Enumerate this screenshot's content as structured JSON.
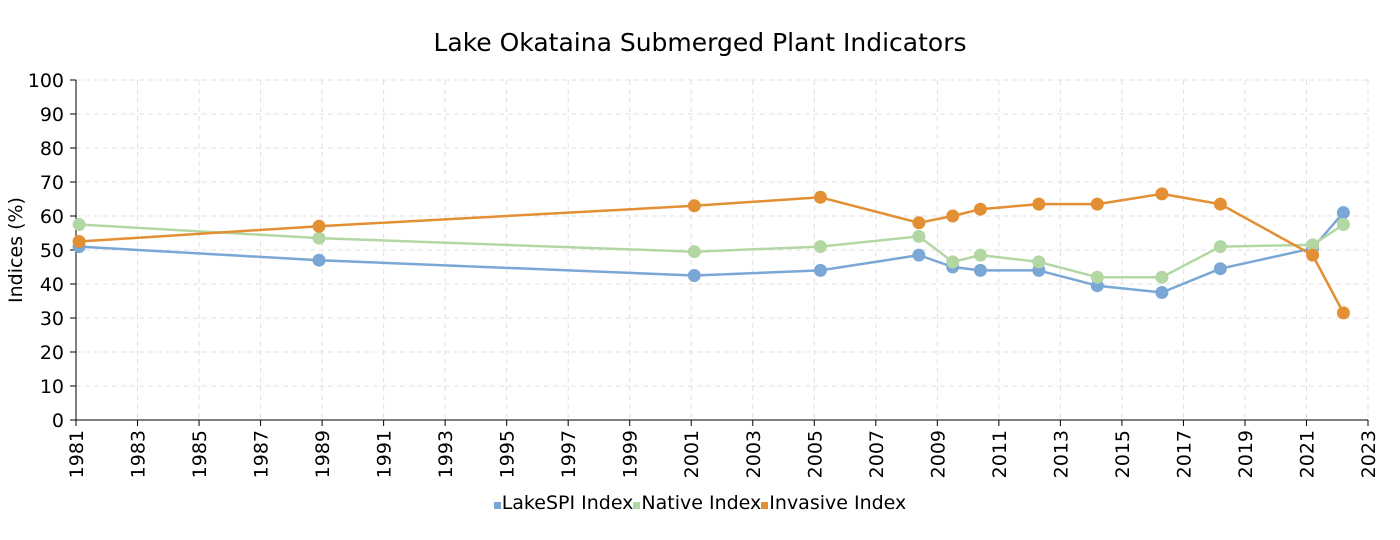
{
  "chart_data": {
    "type": "line",
    "title": "Lake Okataina Submerged Plant Indicators",
    "ylabel": "Indices (%)",
    "xlabel": "",
    "ylim": [
      0,
      100
    ],
    "yticks": [
      0,
      10,
      20,
      30,
      40,
      50,
      60,
      70,
      80,
      90,
      100
    ],
    "xlim": [
      1981,
      2023
    ],
    "xticks": [
      "1981",
      "1983",
      "1985",
      "1987",
      "1989",
      "1991",
      "1993",
      "1995",
      "1997",
      "1999",
      "2001",
      "2003",
      "2005",
      "2007",
      "2009",
      "2011",
      "2013",
      "2015",
      "2017",
      "2019",
      "2021",
      "2023"
    ],
    "grid": true,
    "legend_position": "bottom",
    "series": [
      {
        "name": "LakeSPI Index",
        "color": "#7ba7d6",
        "x": [
          1981.1,
          1988.9,
          2001.1,
          2005.2,
          2008.4,
          2009.5,
          2010.4,
          2012.3,
          2014.2,
          2016.3,
          2018.2,
          2021.2,
          2022.2
        ],
        "values": [
          51,
          47,
          42.5,
          44,
          48.5,
          45,
          44,
          44,
          39.5,
          37.5,
          44.5,
          50.5,
          61
        ]
      },
      {
        "name": "Native Index",
        "color": "#b3d7a3",
        "x": [
          1981.1,
          1988.9,
          2001.1,
          2005.2,
          2008.4,
          2009.5,
          2010.4,
          2012.3,
          2014.2,
          2016.3,
          2018.2,
          2021.2,
          2022.2
        ],
        "values": [
          57.5,
          53.5,
          49.5,
          51,
          54,
          46.5,
          48.5,
          46.5,
          42,
          42,
          51,
          51.5,
          57.5
        ]
      },
      {
        "name": "Invasive Index",
        "color": "#e38f34",
        "x": [
          1981.1,
          1988.9,
          2001.1,
          2005.2,
          2008.4,
          2009.5,
          2010.4,
          2012.3,
          2014.2,
          2016.3,
          2018.2,
          2021.2,
          2022.2
        ],
        "values": [
          52.5,
          57,
          63,
          65.5,
          58,
          60,
          62,
          63.5,
          63.5,
          66.5,
          63.5,
          48.5,
          31.5
        ]
      }
    ]
  }
}
